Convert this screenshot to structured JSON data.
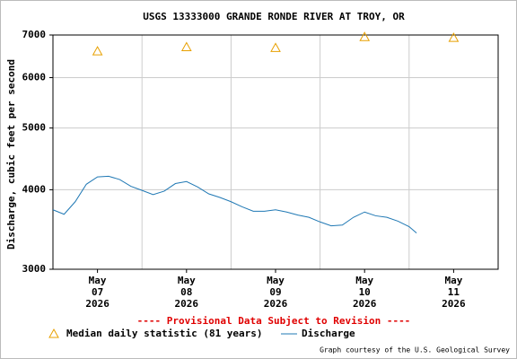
{
  "chart_data": {
    "type": "line",
    "title": "USGS 13333000 GRANDE RONDE RIVER AT TROY, OR",
    "y_label": "Discharge, cubic feet per second",
    "note": "---- Provisional Data Subject to Revision ----",
    "credit": "Graph courtesy of the U.S. Geological Survey",
    "ylog": true,
    "grid": true,
    "ylim": [
      3000,
      7000
    ],
    "yticks": [
      3000,
      4000,
      5000,
      6000,
      7000
    ],
    "xlim": [
      "2026-05-07T00:00",
      "2026-05-12T00:00"
    ],
    "xticks": [
      {
        "value": "2026-05-07T12:00",
        "label": [
          "May",
          "07",
          "2026"
        ]
      },
      {
        "value": "2026-05-08T12:00",
        "label": [
          "May",
          "08",
          "2026"
        ]
      },
      {
        "value": "2026-05-09T12:00",
        "label": [
          "May",
          "09",
          "2026"
        ]
      },
      {
        "value": "2026-05-10T12:00",
        "label": [
          "May",
          "10",
          "2026"
        ]
      },
      {
        "value": "2026-05-11T12:00",
        "label": [
          "May",
          "11",
          "2026"
        ]
      }
    ],
    "series": [
      {
        "name": "Median daily statistic (81 years)",
        "color": "#e8a000",
        "marker": "triangle",
        "x": [
          "2026-05-07T12:00",
          "2026-05-08T12:00",
          "2026-05-09T12:00",
          "2026-05-10T12:00",
          "2026-05-11T12:00"
        ],
        "values": [
          6600,
          6700,
          6680,
          6950,
          6930
        ]
      },
      {
        "name": "Discharge",
        "color": "#1f78b4",
        "marker": "line",
        "x": [
          "2026-05-07T00:00",
          "2026-05-07T03:00",
          "2026-05-07T06:00",
          "2026-05-07T09:00",
          "2026-05-07T12:00",
          "2026-05-07T15:00",
          "2026-05-07T18:00",
          "2026-05-07T21:00",
          "2026-05-08T00:00",
          "2026-05-08T03:00",
          "2026-05-08T06:00",
          "2026-05-08T09:00",
          "2026-05-08T12:00",
          "2026-05-08T15:00",
          "2026-05-08T18:00",
          "2026-05-08T21:00",
          "2026-05-09T00:00",
          "2026-05-09T03:00",
          "2026-05-09T06:00",
          "2026-05-09T09:00",
          "2026-05-09T12:00",
          "2026-05-09T15:00",
          "2026-05-09T18:00",
          "2026-05-09T21:00",
          "2026-05-10T00:00",
          "2026-05-10T03:00",
          "2026-05-10T06:00",
          "2026-05-10T09:00",
          "2026-05-10T12:00",
          "2026-05-10T15:00",
          "2026-05-10T18:00",
          "2026-05-10T21:00",
          "2026-05-11T00:00",
          "2026-05-11T02:00"
        ],
        "values": [
          3720,
          3660,
          3830,
          4080,
          4190,
          4200,
          4150,
          4050,
          3990,
          3930,
          3980,
          4090,
          4120,
          4040,
          3940,
          3890,
          3830,
          3760,
          3700,
          3700,
          3720,
          3690,
          3650,
          3620,
          3560,
          3510,
          3520,
          3620,
          3690,
          3640,
          3620,
          3570,
          3500,
          3420
        ]
      }
    ]
  }
}
